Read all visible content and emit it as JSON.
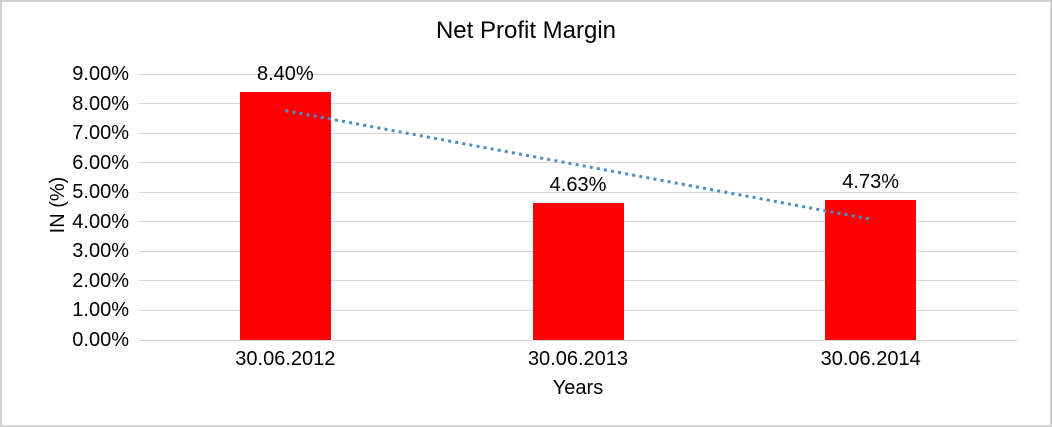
{
  "frame": {
    "background": "#ffffff",
    "border_color": "#d2d2d2"
  },
  "chart_data": {
    "type": "bar",
    "title": "Net Profit Margin",
    "xlabel": "Years",
    "ylabel": "IN (%)",
    "categories": [
      "30.06.2012",
      "30.06.2013",
      "30.06.2014"
    ],
    "series": [
      {
        "name": "Net Profit Margin",
        "values": [
          8.4,
          4.63,
          4.73
        ]
      }
    ],
    "data_labels": [
      "8.40%",
      "4.63%",
      "4.73%"
    ],
    "ylim": [
      0,
      9
    ],
    "ytick_step": 1,
    "ytick_labels": [
      "0.00%",
      "1.00%",
      "2.00%",
      "3.00%",
      "4.00%",
      "5.00%",
      "6.00%",
      "7.00%",
      "8.00%",
      "9.00%"
    ],
    "grid": true,
    "legend": "none",
    "bar_color": "#ff0000",
    "gridline_color": "#d9d9d9",
    "text_color": "#000000",
    "trendline": {
      "type": "linear",
      "style": "dotted",
      "color": "#4d8bc9",
      "point_values": [
        7.76,
        4.09
      ],
      "x_span": [
        0,
        2
      ]
    }
  }
}
